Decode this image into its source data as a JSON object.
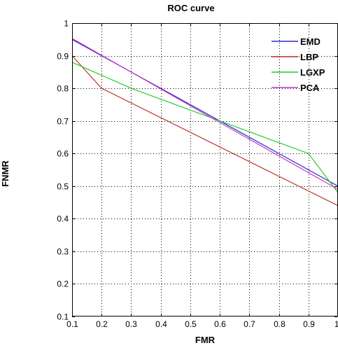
{
  "chart_data": {
    "type": "line",
    "title": "ROC curve",
    "xlabel": "FMR",
    "ylabel": "FNMR",
    "xlim": [
      0.1,
      1
    ],
    "ylim": [
      0.1,
      1
    ],
    "xticks": [
      0.1,
      0.2,
      0.3,
      0.4,
      0.5,
      0.6,
      0.7,
      0.8,
      0.9,
      1
    ],
    "yticks": [
      0.1,
      0.2,
      0.3,
      0.4,
      0.5,
      0.6,
      0.7,
      0.8,
      0.9,
      1
    ],
    "xtick_labels": [
      "0.1",
      "0.2",
      "0.3",
      "0.4",
      "0.5",
      "0.6",
      "0.7",
      "0.8",
      "0.9",
      "1"
    ],
    "ytick_labels": [
      "0.1",
      "0.2",
      "0.3",
      "0.4",
      "0.5",
      "0.6",
      "0.7",
      "0.8",
      "0.9",
      "1"
    ],
    "grid": true,
    "grid_style": "dotted",
    "legend_position": "top-right",
    "series": [
      {
        "name": "EMD",
        "color": "#2b2bc8",
        "points": [
          [
            0.1,
            0.95
          ],
          [
            0.6,
            0.7
          ],
          [
            1.0,
            0.5
          ]
        ]
      },
      {
        "name": "LBP",
        "color": "#c0392b",
        "points": [
          [
            0.1,
            0.9
          ],
          [
            0.2,
            0.8
          ],
          [
            1.0,
            0.44
          ]
        ]
      },
      {
        "name": "LGXP",
        "color": "#22cc22",
        "points": [
          [
            0.1,
            0.88
          ],
          [
            0.3,
            0.8
          ],
          [
            0.6,
            0.7
          ],
          [
            0.9,
            0.6
          ],
          [
            1.0,
            0.48
          ]
        ]
      },
      {
        "name": "PCA",
        "color": "#cc33cc",
        "points": [
          [
            0.1,
            0.953
          ],
          [
            0.6,
            0.695
          ],
          [
            1.0,
            0.49
          ]
        ]
      }
    ]
  }
}
